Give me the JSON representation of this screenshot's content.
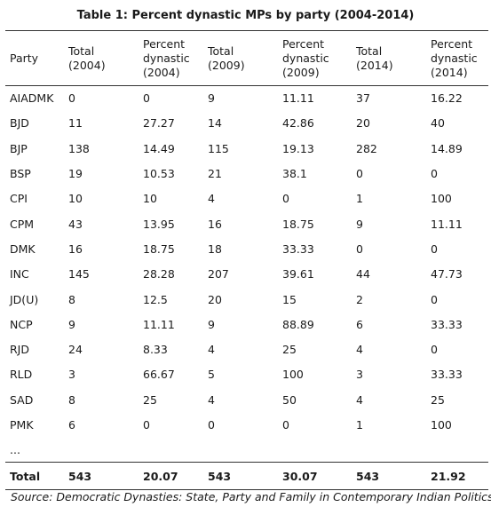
{
  "title": "Table 1: Percent dynastic MPs by party (2004-2014)",
  "headers": [
    [
      "Party"
    ],
    [
      "Total",
      "(2004)"
    ],
    [
      "Percent",
      "dynastic",
      "(2004)"
    ],
    [
      "Total",
      "(2009)"
    ],
    [
      "Percent",
      "dynastic",
      "(2009)"
    ],
    [
      "Total",
      "(2014)"
    ],
    [
      "Percent",
      "dynastic",
      "(2014)"
    ]
  ],
  "rows": [
    [
      "AIADMK",
      "0",
      "0",
      "9",
      "11.11",
      "37",
      "16.22"
    ],
    [
      "BJD",
      "11",
      "27.27",
      "14",
      "42.86",
      "20",
      "40"
    ],
    [
      "BJP",
      "138",
      "14.49",
      "115",
      "19.13",
      "282",
      "14.89"
    ],
    [
      "BSP",
      "19",
      "10.53",
      "21",
      "38.1",
      "0",
      "0"
    ],
    [
      "CPI",
      "10",
      "10",
      "4",
      "0",
      "1",
      "100"
    ],
    [
      "CPM",
      "43",
      "13.95",
      "16",
      "18.75",
      "9",
      "11.11"
    ],
    [
      "DMK",
      "16",
      "18.75",
      "18",
      "33.33",
      "0",
      "0"
    ],
    [
      "INC",
      "145",
      "28.28",
      "207",
      "39.61",
      "44",
      "47.73"
    ],
    [
      "JD(U)",
      "8",
      "12.5",
      "20",
      "15",
      "2",
      "0"
    ],
    [
      "NCP",
      "9",
      "11.11",
      "9",
      "88.89",
      "6",
      "33.33"
    ],
    [
      "RJD",
      "24",
      "8.33",
      "4",
      "25",
      "4",
      "0"
    ],
    [
      "RLD",
      "3",
      "66.67",
      "5",
      "100",
      "3",
      "33.33"
    ],
    [
      "SAD",
      "8",
      "25",
      "4",
      "50",
      "4",
      "25"
    ],
    [
      "PMK",
      "6",
      "0",
      "0",
      "0",
      "1",
      "100"
    ],
    [
      "...",
      "",
      "",
      "",
      "",
      "",
      ""
    ]
  ],
  "total": [
    "Total",
    "543",
    "20.07",
    "543",
    "30.07",
    "543",
    "21.92"
  ],
  "source": "Source: Democratic Dynasties: State, Party and Family in Contemporary Indian Politics"
}
